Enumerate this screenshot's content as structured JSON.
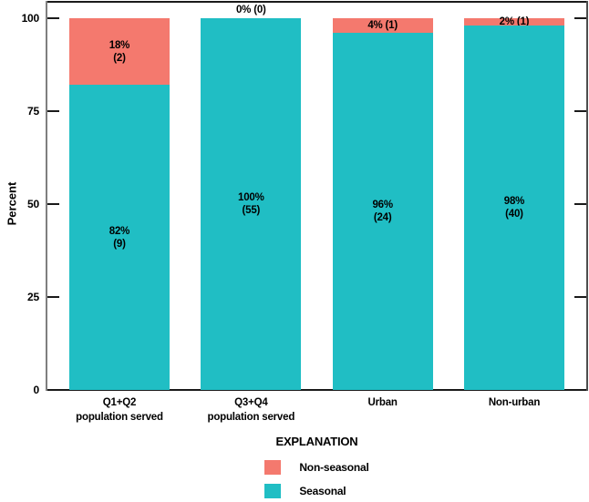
{
  "y_axis": {
    "label": "Percent",
    "tick_labels": [
      "0",
      "25",
      "50",
      "75",
      "100"
    ]
  },
  "colors": {
    "seasonal": "#20BEC4",
    "nonseasonal": "#F4796E",
    "frame_dark": "#1a1a1a",
    "axis_gray": "#7f7f7f",
    "text": "#000000"
  },
  "legend": {
    "title": "EXPLANATION",
    "items": [
      {
        "label": "Non-seasonal",
        "color": "#F4796E"
      },
      {
        "label": "Seasonal",
        "color": "#20BEC4"
      }
    ]
  },
  "bars": [
    {
      "cat_line1": "Q1+Q2",
      "cat_line2": "population served",
      "seasonal_pct": 82,
      "nonseasonal_pct": 18,
      "ns_label_mode": "stacked-inside",
      "ns_label": "18%",
      "ns_sub": "(2)",
      "s_label": "82%",
      "s_sub": "(9)"
    },
    {
      "cat_line1": "Q3+Q4",
      "cat_line2": "population served",
      "seasonal_pct": 100,
      "nonseasonal_pct": 0,
      "ns_label_mode": "above",
      "ns_label": "0% (0)",
      "ns_sub": "",
      "s_label": "100%",
      "s_sub": "(55)"
    },
    {
      "cat_line1": "Urban",
      "cat_line2": "",
      "seasonal_pct": 96,
      "nonseasonal_pct": 4,
      "ns_label_mode": "inline-inside",
      "ns_label": "4% (1)",
      "ns_sub": "",
      "s_label": "96%",
      "s_sub": "(24)"
    },
    {
      "cat_line1": "Non-urban",
      "cat_line2": "",
      "seasonal_pct": 98,
      "nonseasonal_pct": 2,
      "ns_label_mode": "inline-inside",
      "ns_label": "2% (1)",
      "ns_sub": "",
      "s_label": "98%",
      "s_sub": "(40)"
    }
  ],
  "chart_data": {
    "type": "bar",
    "stacked": true,
    "categories": [
      "Q1+Q2 population served",
      "Q3+Q4 population served",
      "Urban",
      "Non-urban"
    ],
    "series": [
      {
        "name": "Seasonal",
        "values": [
          82,
          100,
          96,
          98
        ],
        "counts": [
          9,
          55,
          24,
          40
        ]
      },
      {
        "name": "Non-seasonal",
        "values": [
          18,
          0,
          4,
          2
        ],
        "counts": [
          2,
          0,
          1,
          1
        ]
      }
    ],
    "value_label_format": "percent (count)",
    "title": "",
    "xlabel": "",
    "ylabel": "Percent",
    "ylim": [
      0,
      100
    ],
    "yticks": [
      0,
      25,
      50,
      75,
      100
    ],
    "grid": false,
    "legend_position": "bottom-center",
    "legend_title": "EXPLANATION"
  }
}
